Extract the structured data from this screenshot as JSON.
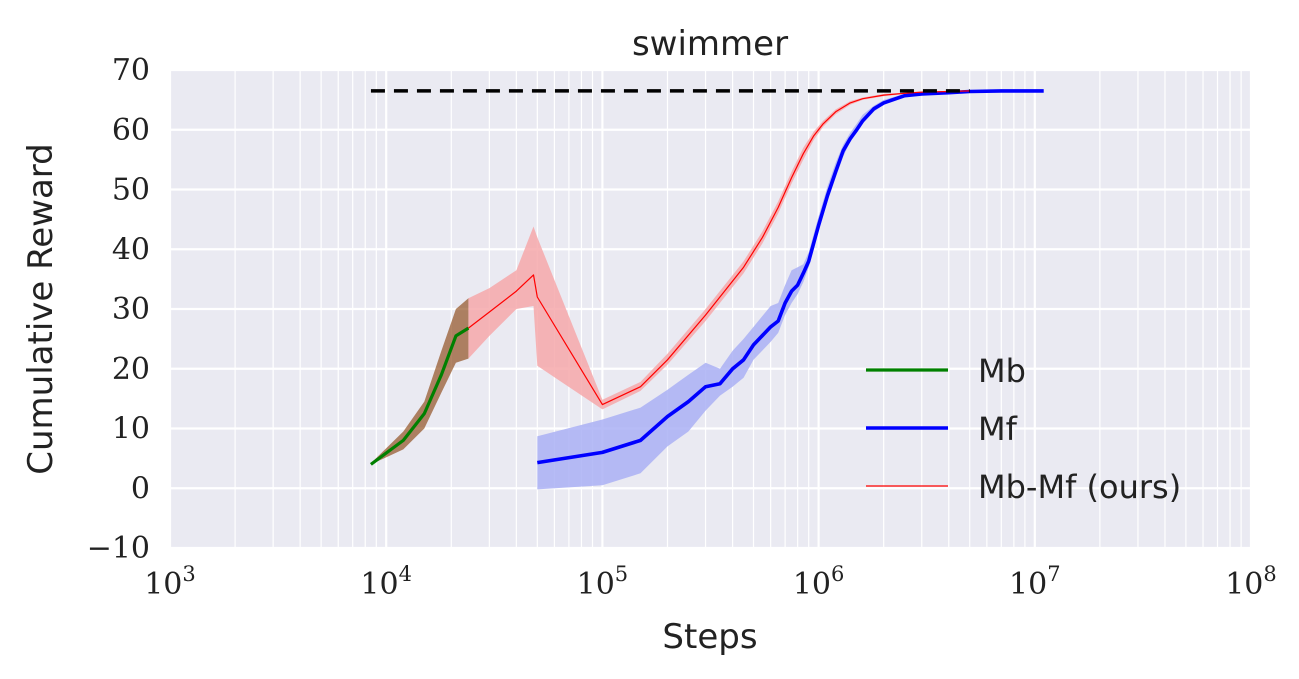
{
  "chart_data": {
    "type": "line",
    "title": "swimmer",
    "xlabel": "Steps",
    "ylabel": "Cumulative Reward",
    "xscale": "log",
    "xlim": [
      1000,
      100000000
    ],
    "ylim": [
      -10,
      70
    ],
    "grid": true,
    "legend_position": "lower-right",
    "y_ticks": [
      "−10",
      "0",
      "10",
      "20",
      "30",
      "40",
      "50",
      "60",
      "70"
    ],
    "x_ticks": [
      {
        "base": "10",
        "exp": "3"
      },
      {
        "base": "10",
        "exp": "4"
      },
      {
        "base": "10",
        "exp": "5"
      },
      {
        "base": "10",
        "exp": "6"
      },
      {
        "base": "10",
        "exp": "7"
      },
      {
        "base": "10",
        "exp": "8"
      }
    ],
    "reference_line": {
      "y": 66.5,
      "x_range": [
        8500,
        5000000
      ],
      "color": "#000000",
      "style": "dashed"
    },
    "series": [
      {
        "name": "Mb",
        "color": "#008000",
        "band_color": "#8b4513",
        "x": [
          8500,
          12000,
          15000,
          18000,
          21000,
          24000
        ],
        "y": [
          4,
          8,
          12.5,
          19,
          25.5,
          26.8
        ],
        "lower": [
          4,
          6.5,
          10,
          16,
          21,
          21.7
        ],
        "upper": [
          4.2,
          9.5,
          14.5,
          23,
          30,
          31.8
        ]
      },
      {
        "name": "Mf",
        "color": "#0000ff",
        "band_color": "#aab0f4",
        "x": [
          50000,
          100000,
          150000,
          200000,
          250000,
          300000,
          350000,
          400000,
          450000,
          500000,
          600000,
          650000,
          700000,
          750000,
          800000,
          850000,
          900000,
          1000000,
          1100000,
          1200000,
          1300000,
          1400000,
          1500000,
          1600000,
          1800000,
          2000000,
          2500000,
          3000000,
          4000000,
          5000000,
          7000000,
          10000000,
          11000000
        ],
        "y": [
          4.3,
          6,
          8,
          12,
          14.5,
          17,
          17.5,
          20,
          21.5,
          24,
          27,
          28,
          31,
          33,
          34,
          36,
          38,
          44,
          49,
          53,
          56.5,
          58.5,
          60,
          61.5,
          63.5,
          64.5,
          65.7,
          66,
          66.2,
          66.4,
          66.5,
          66.5,
          66.5
        ],
        "lower": [
          -0.2,
          0.5,
          2.5,
          7,
          9.5,
          13,
          15.5,
          17,
          18.5,
          21.5,
          24.5,
          26,
          29,
          31,
          32.5,
          34.5,
          37,
          43,
          48,
          52,
          55.5,
          58,
          59.5,
          61,
          63,
          64.2,
          65.5,
          65.9,
          66.1,
          66.3,
          66.4,
          66.4,
          66.4
        ],
        "upper": [
          8.7,
          11.5,
          13.5,
          16.5,
          19,
          21,
          20,
          23,
          25,
          27,
          30.5,
          31,
          34,
          36.5,
          37,
          37.5,
          39.5,
          45.5,
          50.5,
          54.5,
          57.5,
          59.5,
          61,
          62.5,
          64,
          65,
          66,
          66.2,
          66.3,
          66.5,
          66.6,
          66.6,
          66.6
        ]
      },
      {
        "name": "Mb-Mf (ours)",
        "color": "#ff0000",
        "band_color": "#f6a8aa",
        "x": [
          24000,
          30000,
          40000,
          48000,
          50000,
          100000,
          150000,
          200000,
          300000,
          450000,
          550000,
          650000,
          750000,
          850000,
          950000,
          1050000,
          1200000,
          1400000,
          1600000,
          2000000,
          2500000,
          3000000,
          4000000,
          5000000
        ],
        "y": [
          26.8,
          29.5,
          33,
          35.7,
          32,
          14,
          17,
          21.5,
          29,
          37,
          42,
          47,
          52,
          56,
          59,
          61,
          63,
          64.5,
          65.2,
          65.8,
          66.1,
          66.3,
          66.4,
          66.5
        ],
        "lower": [
          21.7,
          25.5,
          30,
          30.5,
          20.5,
          13.2,
          16.3,
          20.7,
          28,
          36,
          41,
          46,
          51,
          55,
          58.3,
          60.5,
          62.6,
          64.2,
          65,
          65.6,
          66,
          66.2,
          66.3,
          66.4
        ],
        "upper": [
          31.8,
          33.5,
          36.5,
          43.8,
          42,
          14.8,
          17.8,
          22.5,
          30,
          38,
          43,
          48,
          53,
          57,
          59.7,
          61.5,
          63.4,
          64.8,
          65.4,
          66,
          66.2,
          66.4,
          66.5,
          66.6
        ]
      }
    ]
  }
}
